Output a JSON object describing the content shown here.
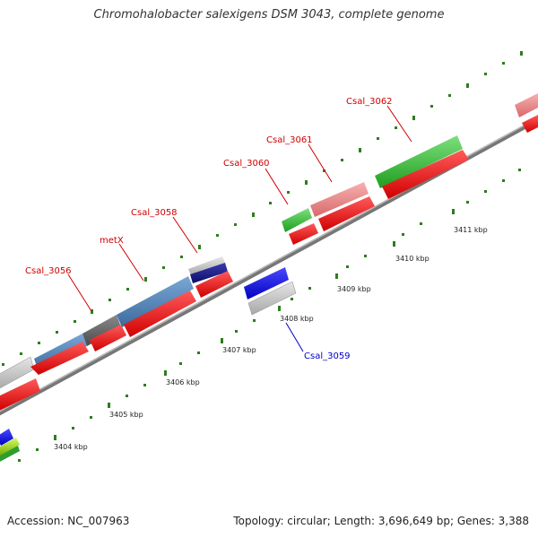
{
  "title": "Chromohalobacter salexigens DSM 3043, complete genome",
  "footer": {
    "accession": "Accession: NC_007963",
    "topology": "Topology: circular;",
    "length": "Length: 3,696,649 bp;",
    "genes": "Genes: 3,388"
  },
  "colors": {
    "backbone": "#8a8a8a",
    "tick": "#2e7d1e",
    "label_forward": "#d00000",
    "label_reverse": "#0000c8",
    "cds_red": "#ff0000",
    "gene_green": "#33cc33",
    "gene_pink": "#f08080",
    "gene_steelblue": "#4a7fb5",
    "gene_gray": "#666666",
    "gene_lightgray": "#bdbdbd",
    "gene_navy": "#1a1a8c",
    "gene_blue": "#0000ff",
    "gene_lime": "#99cc00"
  },
  "scale_labels": [
    "3404 kbp",
    "3405 kbp",
    "3406 kbp",
    "3407 kbp",
    "3408 kbp",
    "3409 kbp",
    "3410 kbp",
    "3411 kbp"
  ],
  "gene_labels": {
    "csal_3056": "Csal_3056",
    "metx": "metX",
    "csal_3058": "Csal_3058",
    "csal_3059": "Csal_3059",
    "csal_3060": "Csal_3060",
    "csal_3061": "Csal_3061",
    "csal_3062": "Csal_3062"
  }
}
